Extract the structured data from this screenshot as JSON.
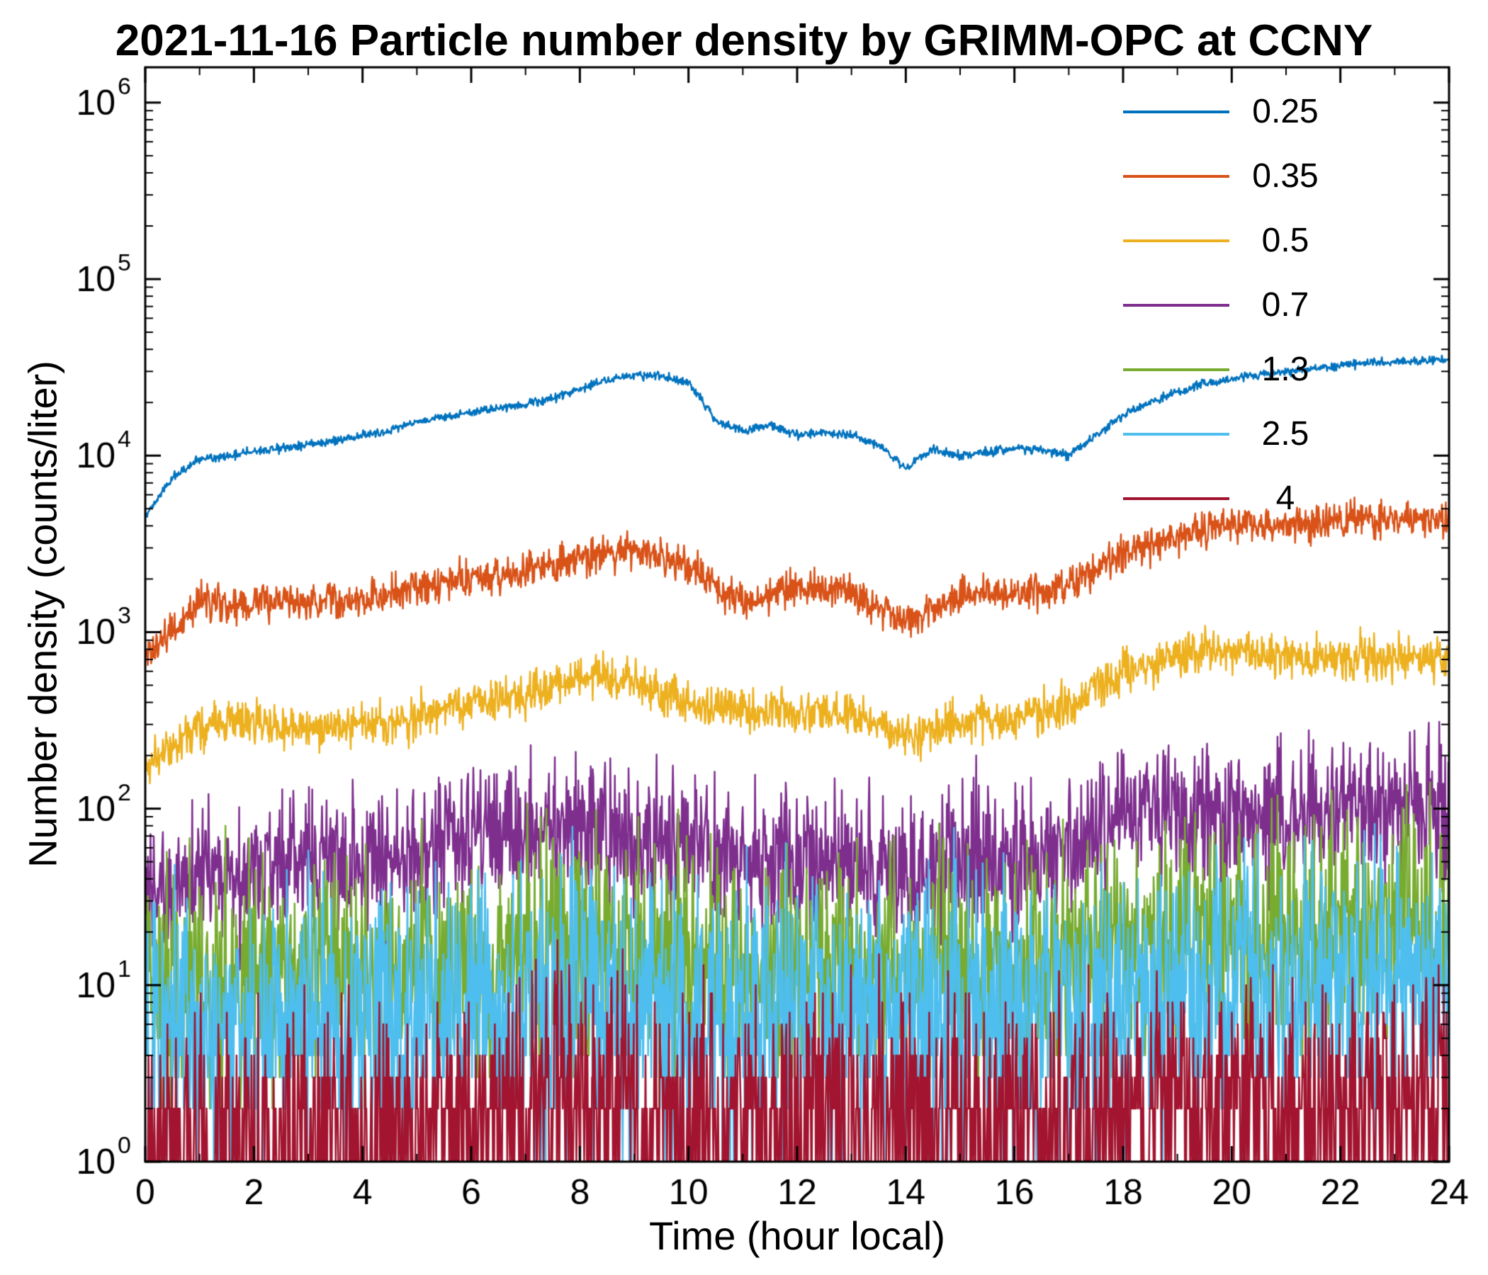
{
  "chart_data": {
    "type": "line",
    "title": "2021-11-16 Particle number density by GRIMM-OPC at CCNY",
    "xlabel": "Time (hour local)",
    "ylabel": "Number density (counts/liter)",
    "xlim": [
      0,
      24
    ],
    "x_ticks": [
      0,
      2,
      4,
      6,
      8,
      10,
      12,
      14,
      16,
      18,
      20,
      22,
      24
    ],
    "x_minor_ticks": [
      1,
      3,
      5,
      7,
      9,
      11,
      13,
      15,
      17,
      19,
      21,
      23
    ],
    "y_scale": "log",
    "y_tick_exponents": [
      0,
      1,
      2,
      3,
      4,
      5,
      6
    ],
    "ylim_exponents": [
      0,
      6.2
    ],
    "grid": false,
    "legend_position": "top-right-inside",
    "axis_color": "#000000",
    "samples": 2000,
    "series": [
      {
        "name": "0.25",
        "color": "#0072BD",
        "width": 2.5,
        "sigma": 0.012,
        "quantize": false,
        "seed": 1,
        "anchors": [
          4500,
          7500,
          9500,
          10000,
          10500,
          11000,
          11500,
          12200,
          13000,
          14000,
          15500,
          16500,
          17500,
          18500,
          19500,
          21000,
          24000,
          27000,
          28500,
          28500,
          26000,
          16000,
          13500,
          15000,
          13000,
          13500,
          13000,
          11500,
          8500,
          11000,
          10000,
          10500,
          11000,
          10800,
          10000,
          13000,
          17000,
          20000,
          23000,
          25500,
          27000,
          28500,
          30000,
          31000,
          32500,
          33500,
          34000,
          34500,
          35000
        ],
        "events": []
      },
      {
        "name": "0.35",
        "color": "#D95319",
        "width": 2.5,
        "sigma": 0.05,
        "quantize": false,
        "seed": 2,
        "anchors": [
          700,
          1500,
          1450,
          1500,
          1550,
          1750,
          2000,
          2250,
          2600,
          2950,
          2400,
          1500,
          1800,
          1700,
          1150,
          1650,
          1650,
          1800,
          2800,
          3400,
          4100,
          3900,
          4300,
          4400,
          4400
        ],
        "events": []
      },
      {
        "name": "0.5",
        "color": "#EDB120",
        "width": 2.5,
        "sigma": 0.06,
        "quantize": false,
        "seed": 3,
        "anchors": [
          170,
          300,
          310,
          290,
          300,
          330,
          400,
          450,
          560,
          520,
          400,
          360,
          360,
          340,
          260,
          320,
          330,
          380,
          600,
          750,
          800,
          700,
          720,
          740,
          700
        ],
        "events": []
      },
      {
        "name": "0.7",
        "color": "#7E2F8E",
        "width": 2.5,
        "sigma": 0.2,
        "quantize": false,
        "seed": 4,
        "anchors": [
          35,
          45,
          45,
          50,
          50,
          55,
          65,
          70,
          75,
          70,
          60,
          55,
          55,
          50,
          45,
          55,
          50,
          55,
          90,
          100,
          95,
          95,
          100,
          100,
          95
        ],
        "events": [
          {
            "x": 15.25,
            "v": 150
          },
          {
            "x": 15.3,
            "v": 200
          }
        ]
      },
      {
        "name": "1.3",
        "color": "#77AC30",
        "width": 2.5,
        "sigma": 0.32,
        "quantize": true,
        "seed": 5,
        "anchors": [
          9,
          11,
          11,
          12,
          12,
          12,
          13,
          15,
          16,
          14,
          13,
          12,
          13,
          12,
          11,
          12,
          12,
          13,
          18,
          20,
          20,
          19,
          20,
          21,
          20
        ],
        "events": []
      },
      {
        "name": "2.5",
        "color": "#4DBEEE",
        "width": 2.5,
        "sigma": 0.38,
        "quantize": true,
        "seed": 6,
        "anchors": [
          5,
          6,
          6,
          6,
          6,
          6,
          7,
          7,
          8,
          7,
          7,
          7,
          7,
          6,
          6,
          7,
          6,
          7,
          9,
          10,
          10,
          9,
          10,
          10,
          10
        ],
        "events": [
          {
            "x": 8.3,
            "v": 30
          },
          {
            "x": 15.3,
            "v": 45
          }
        ]
      },
      {
        "name": "4",
        "color": "#A2142F",
        "width": 2.5,
        "sigma": 0.35,
        "quantize": true,
        "seed": 7,
        "anchors": [
          1.4,
          1.4,
          1.3,
          1.4,
          1.5,
          1.4,
          1.5,
          1.6,
          2.5,
          2.2,
          1.8,
          1.7,
          1.8,
          1.7,
          1.8,
          1.9,
          1.6,
          1.7,
          1.9,
          2.0,
          2.0,
          1.9,
          2.0,
          2.0,
          2.0
        ],
        "events": [
          {
            "x": 8.25,
            "v": 10
          },
          {
            "x": 8.5,
            "v": 7
          },
          {
            "x": 8.6,
            "v": 5
          },
          {
            "x": 9.4,
            "v": 6
          },
          {
            "x": 12.0,
            "v": 5
          },
          {
            "x": 13.4,
            "v": 4
          },
          {
            "x": 14.9,
            "v": 9
          },
          {
            "x": 15.3,
            "v": 6
          },
          {
            "x": 18.6,
            "v": 5
          },
          {
            "x": 20.3,
            "v": 4
          }
        ]
      }
    ]
  }
}
